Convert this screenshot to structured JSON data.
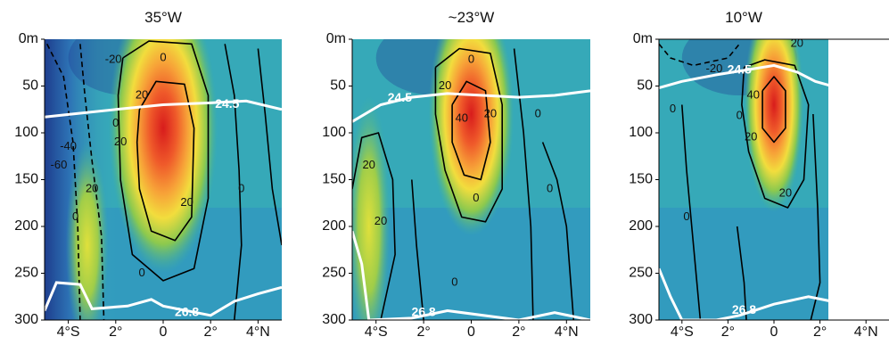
{
  "chart_data": [
    {
      "type": "heatmap",
      "title": "35°W",
      "x_tick_labels": [
        "4°S",
        "2°",
        "0",
        "2°",
        "4°N"
      ],
      "x_ticks": [
        -4,
        -2,
        0,
        2,
        4
      ],
      "xlim": [
        -5,
        5
      ],
      "y_tick_labels": [
        "0m",
        "50",
        "100",
        "150",
        "200",
        "250",
        "300"
      ],
      "y_ticks": [
        0,
        50,
        100,
        150,
        200,
        250,
        300
      ],
      "ylim": [
        0,
        300
      ],
      "data_lon_range": [
        -5,
        5
      ],
      "core": {
        "lat": 0,
        "depth": 95,
        "max_value": 80
      },
      "contour_labels": [
        "-20",
        "0",
        "20",
        "20",
        "0",
        "0",
        "0",
        "20",
        "-40",
        "-60",
        "0",
        "20"
      ],
      "isopycnals": [
        "24.5",
        "26.8"
      ]
    },
    {
      "type": "heatmap",
      "title": "~23°W",
      "x_tick_labels": [
        "4°S",
        "2°",
        "0",
        "2°",
        "4°N"
      ],
      "x_ticks": [
        -4,
        -2,
        0,
        2,
        4
      ],
      "xlim": [
        -5,
        5
      ],
      "y_tick_labels": [
        "0m",
        "50",
        "100",
        "150",
        "200",
        "250",
        "300"
      ],
      "y_ticks": [
        0,
        50,
        100,
        150,
        200,
        250,
        300
      ],
      "ylim": [
        0,
        300
      ],
      "data_lon_range": [
        -5,
        5
      ],
      "core": {
        "lat": 0,
        "depth": 80,
        "max_value": 80
      },
      "contour_labels": [
        "0",
        "20",
        "40",
        "20",
        "0",
        "20",
        "20",
        "0",
        "0",
        "0"
      ],
      "isopycnals": [
        "24.5",
        "26.8"
      ]
    },
    {
      "type": "heatmap",
      "title": "10°W",
      "x_tick_labels": [
        "4°S",
        "2°",
        "0",
        "2°",
        "4°N"
      ],
      "x_ticks": [
        -4,
        -2,
        0,
        2,
        4
      ],
      "xlim": [
        -5,
        5
      ],
      "y_tick_labels": [
        "0m",
        "50",
        "100",
        "150",
        "200",
        "250",
        "300"
      ],
      "y_ticks": [
        0,
        50,
        100,
        150,
        200,
        250,
        300
      ],
      "ylim": [
        0,
        300
      ],
      "data_lon_range": [
        -5,
        2.5
      ],
      "core": {
        "lat": 0,
        "depth": 70,
        "max_value": 80
      },
      "contour_labels": [
        "20",
        "-20",
        "0",
        "40",
        "20",
        "0",
        "20",
        "0",
        "0"
      ],
      "isopycnals": [
        "24.5",
        "26.8"
      ]
    }
  ],
  "colors": {
    "low": "#1f3d91",
    "mid": "#36a9b8",
    "high": "#d42020",
    "isopycnal": "#ffffff",
    "contour": "#000000"
  }
}
